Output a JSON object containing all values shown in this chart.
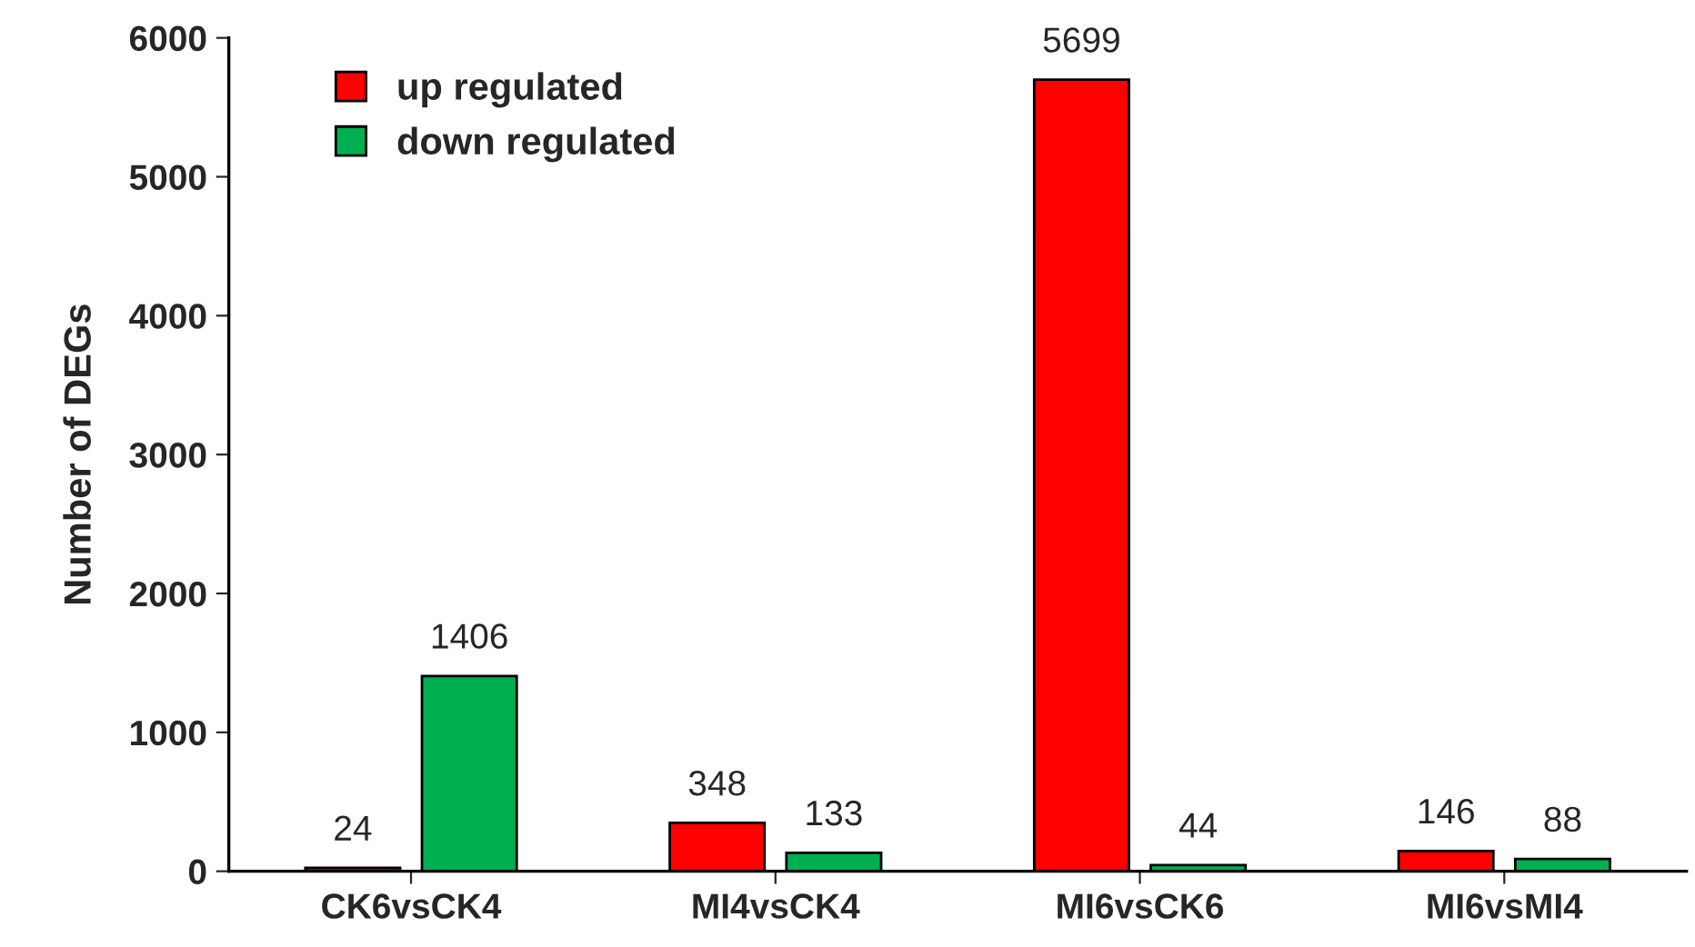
{
  "chart_data": {
    "type": "bar",
    "ylabel": "Number of DEGs",
    "categories": [
      "CK6vsCK4",
      "MI4vsCK4",
      "MI6vsCK6",
      "MI6vsMI4"
    ],
    "series": [
      {
        "name": "up regulated",
        "color": "#ff0000",
        "values": [
          24,
          348,
          5699,
          146
        ]
      },
      {
        "name": "down regulated",
        "color": "#00b050",
        "values": [
          1406,
          133,
          44,
          88
        ]
      }
    ],
    "ylim": [
      0,
      6000
    ],
    "yticks": [
      0,
      1000,
      2000,
      3000,
      4000,
      5000,
      6000
    ],
    "data_labels": true,
    "legend": "top left",
    "grid": false
  }
}
